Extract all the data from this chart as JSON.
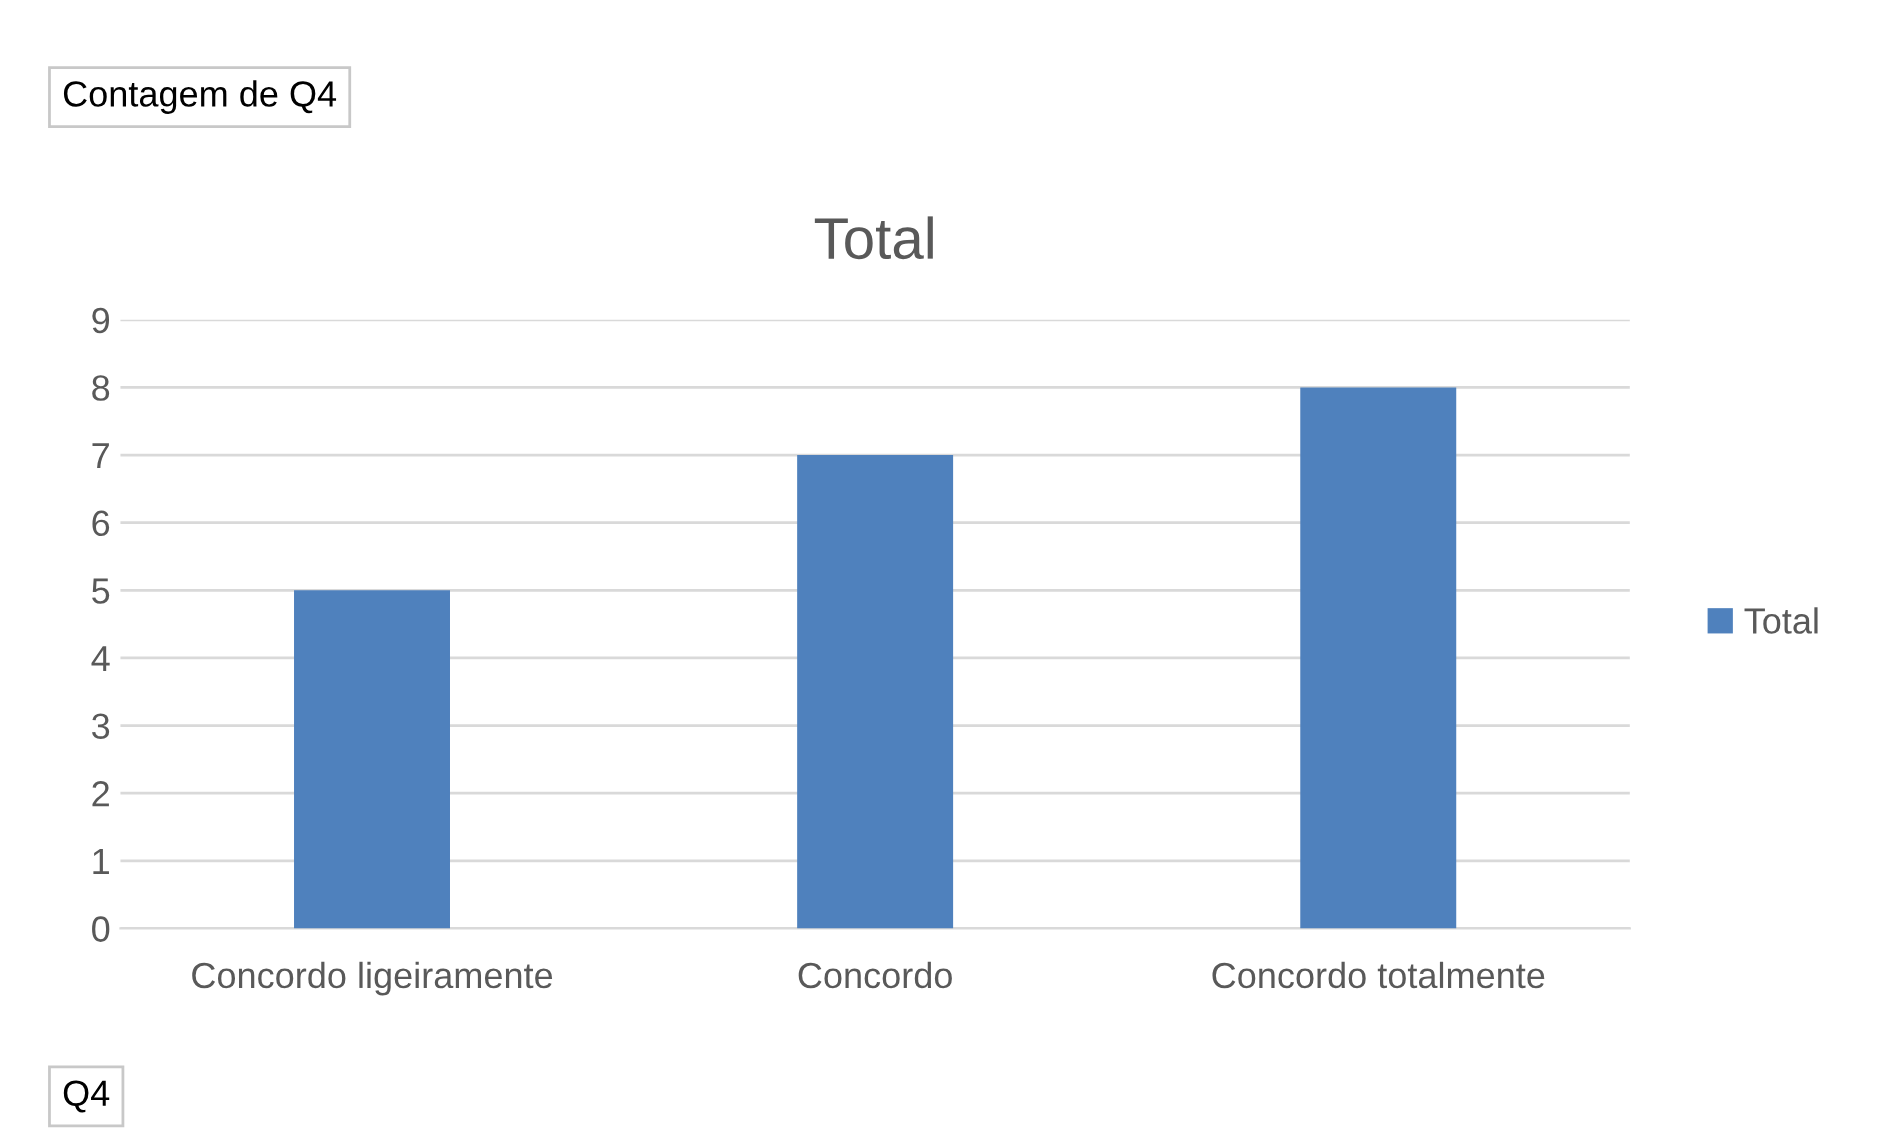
{
  "chart_data": {
    "type": "bar",
    "title": "Total",
    "categories": [
      "Concordo ligeiramente",
      "Concordo",
      "Concordo totalmente"
    ],
    "series": [
      {
        "name": "Total",
        "color": "#4f81bd",
        "values": [
          5,
          7,
          8
        ]
      }
    ],
    "ylim": [
      0,
      9
    ],
    "yticks": [
      0,
      1,
      2,
      3,
      4,
      5,
      6,
      7,
      8,
      9
    ],
    "grid": "y",
    "legend": "right",
    "annotations": [
      "Contagem de Q4",
      "Q4"
    ]
  }
}
